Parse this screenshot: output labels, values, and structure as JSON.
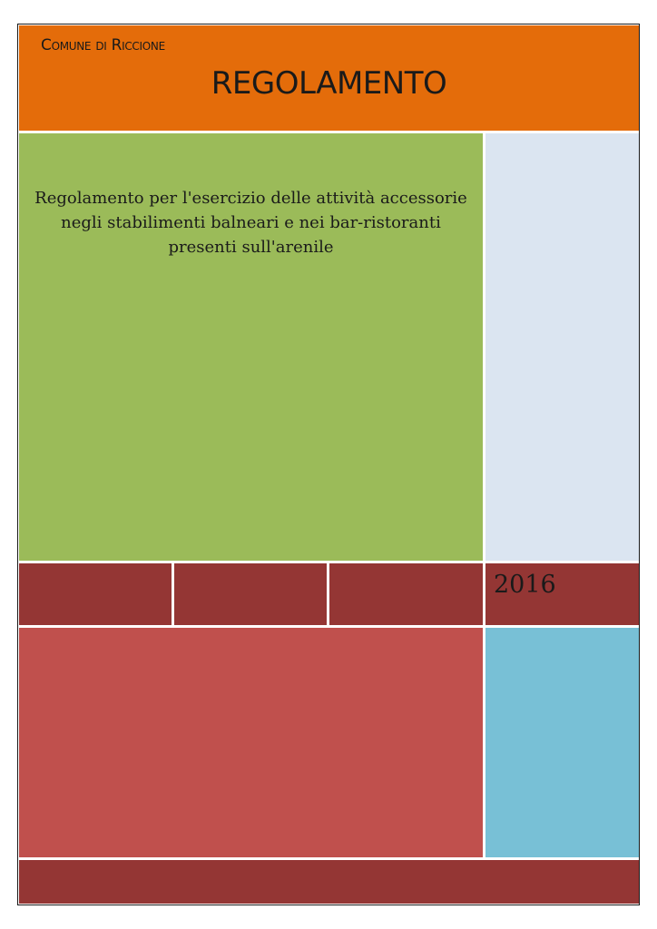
{
  "cover": {
    "municipality": "Comune di Riccione",
    "title": "REGOLAMENTO",
    "subtitle": "Regolamento per l'esercizio delle attività accessorie negli stabilimenti balneari e nei bar-ristoranti presenti sull'arenile",
    "year": "2016"
  },
  "colors": {
    "header": "#e46c0a",
    "green_panel": "#9bbb59",
    "light_blue_panel": "#dbe5f1",
    "maroon_band": "#943634",
    "red_panel": "#c0504d",
    "cyan_panel": "#78c0d6"
  }
}
